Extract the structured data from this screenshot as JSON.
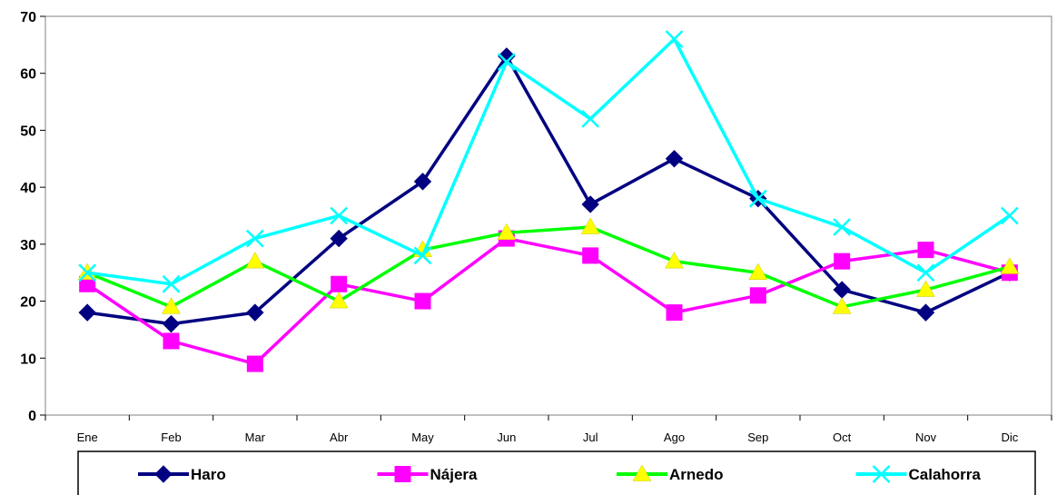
{
  "chart_data": {
    "type": "line",
    "title": "",
    "xlabel": "",
    "ylabel": "",
    "categories": [
      "Ene",
      "Feb",
      "Mar",
      "Abr",
      "May",
      "Jun",
      "Jul",
      "Ago",
      "Sep",
      "Oct",
      "Nov",
      "Dic"
    ],
    "ylim": [
      0,
      70
    ],
    "yticks": [
      0,
      10,
      20,
      30,
      40,
      50,
      60,
      70
    ],
    "grid": false,
    "legend_position": "bottom",
    "series": [
      {
        "name": "Haro",
        "color": "#000080",
        "marker": "diamond",
        "values": [
          18,
          16,
          18,
          31,
          41,
          63,
          37,
          45,
          38,
          22,
          18,
          25
        ]
      },
      {
        "name": "Nájera",
        "color": "#ff00ff",
        "marker": "square",
        "values": [
          23,
          13,
          9,
          23,
          20,
          31,
          28,
          18,
          21,
          27,
          29,
          25
        ]
      },
      {
        "name": "Arnedo",
        "color": "#00ff00",
        "marker": "triangle",
        "marker_fill": "#ffff00",
        "values": [
          25,
          19,
          27,
          20,
          29,
          32,
          33,
          27,
          25,
          19,
          22,
          26
        ]
      },
      {
        "name": "Calahorra",
        "color": "#00ffff",
        "marker": "x",
        "values": [
          25,
          23,
          31,
          35,
          28,
          62,
          52,
          66,
          38,
          33,
          25,
          35
        ]
      }
    ]
  }
}
